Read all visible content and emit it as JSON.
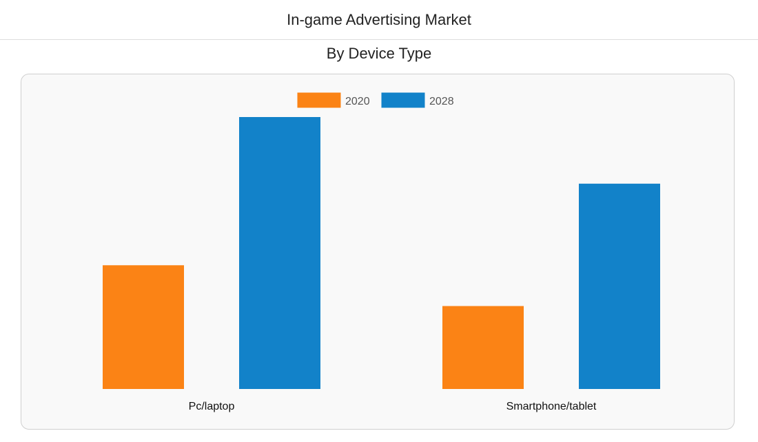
{
  "page": {
    "title": "In-game Advertising Market",
    "subtitle": "By Device Type"
  },
  "colors": {
    "series_2020": "#fb8315",
    "series_2028": "#1282c9"
  },
  "chart_data": {
    "type": "bar",
    "title": "In-game Advertising Market",
    "subtitle": "By Device Type",
    "categories": [
      "Pc/laptop",
      "Smartphone/tablet"
    ],
    "series": [
      {
        "name": "2020",
        "color": "#fb8315",
        "values": [
          45.5,
          30.5
        ]
      },
      {
        "name": "2028",
        "color": "#1282c9",
        "values": [
          100,
          75.5
        ]
      }
    ],
    "ylim": [
      0,
      100
    ],
    "xlabel": "",
    "ylabel": "",
    "grid": false,
    "legend": "top-center",
    "y_axis_visible": false
  }
}
